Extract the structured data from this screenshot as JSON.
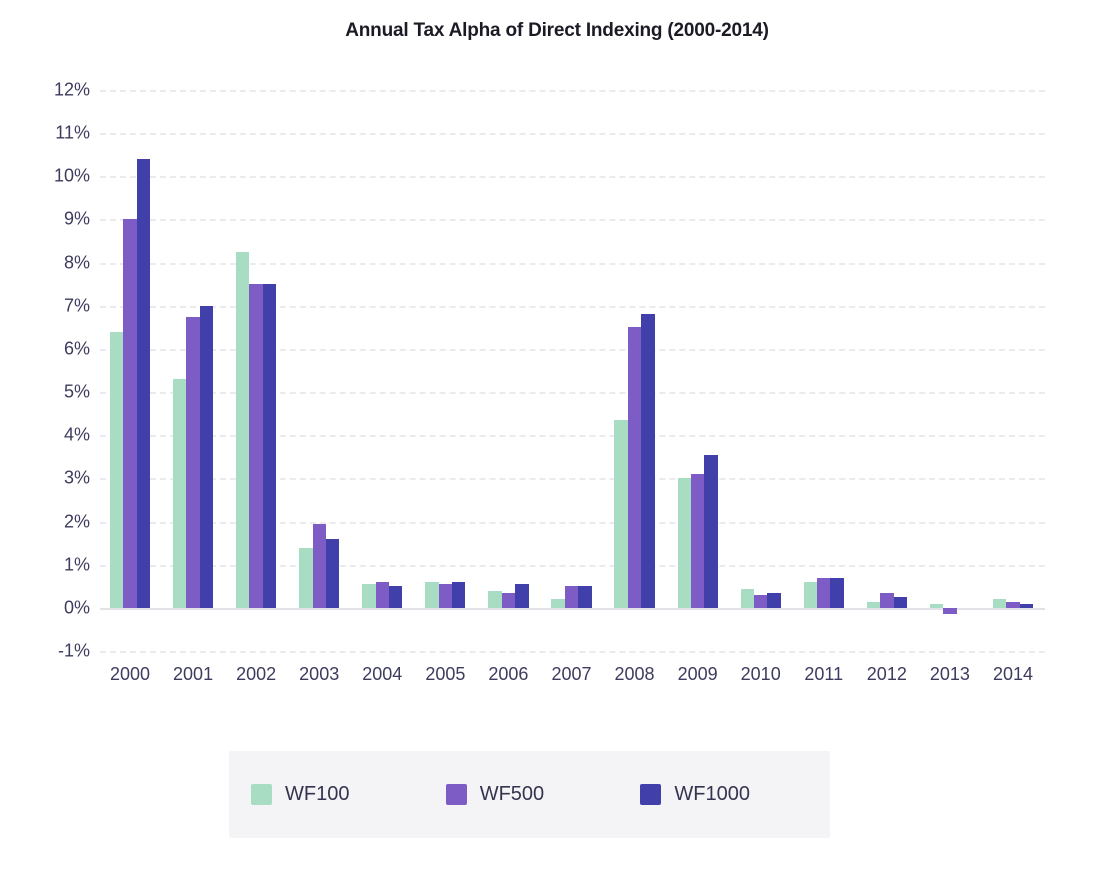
{
  "title": "Annual Tax Alpha of Direct Indexing (2000-2014)",
  "chart_data": {
    "type": "bar",
    "title": "Annual Tax Alpha of Direct Indexing (2000-2014)",
    "xlabel": "",
    "ylabel": "",
    "categories": [
      "2000",
      "2001",
      "2002",
      "2003",
      "2004",
      "2005",
      "2006",
      "2007",
      "2008",
      "2009",
      "2010",
      "2011",
      "2012",
      "2013",
      "2014"
    ],
    "series": [
      {
        "name": "WF100",
        "color": "#a8dcc3",
        "values": [
          6.4,
          5.3,
          8.25,
          1.4,
          0.55,
          0.6,
          0.4,
          0.2,
          4.35,
          3.0,
          0.45,
          0.6,
          0.15,
          0.1,
          0.2
        ]
      },
      {
        "name": "WF500",
        "color": "#7d5cc6",
        "values": [
          9.0,
          6.75,
          7.5,
          1.95,
          0.6,
          0.55,
          0.35,
          0.5,
          6.5,
          3.1,
          0.3,
          0.7,
          0.35,
          -0.15,
          0.15
        ]
      },
      {
        "name": "WF1000",
        "color": "#4140ab",
        "values": [
          10.4,
          7.0,
          7.5,
          1.6,
          0.5,
          0.6,
          0.55,
          0.5,
          6.8,
          3.55,
          0.35,
          0.7,
          0.25,
          0.0,
          0.1
        ]
      }
    ],
    "y_ticks": [
      "12%",
      "11%",
      "10%",
      "9%",
      "8%",
      "7%",
      "6%",
      "5%",
      "4%",
      "3%",
      "2%",
      "1%",
      "0%",
      "-1%"
    ],
    "y_tick_values": [
      12,
      11,
      10,
      9,
      8,
      7,
      6,
      5,
      4,
      3,
      2,
      1,
      0,
      -1
    ],
    "ylim": [
      -1,
      12
    ],
    "unit": "%",
    "grid": "horizontal-dashed",
    "legend_position": "bottom"
  },
  "legend": {
    "items": [
      {
        "label": "WF100",
        "color": "#a8dcc3"
      },
      {
        "label": "WF500",
        "color": "#7d5cc6"
      },
      {
        "label": "WF1000",
        "color": "#4140ab"
      }
    ]
  },
  "colors": {
    "title_text": "#1b1b26",
    "axis_text": "#3d3c5e",
    "gridline": "#ebebee",
    "baseline": "#e2e2e6",
    "legend_background": "#f4f4f6",
    "legend_text": "#35344f"
  }
}
